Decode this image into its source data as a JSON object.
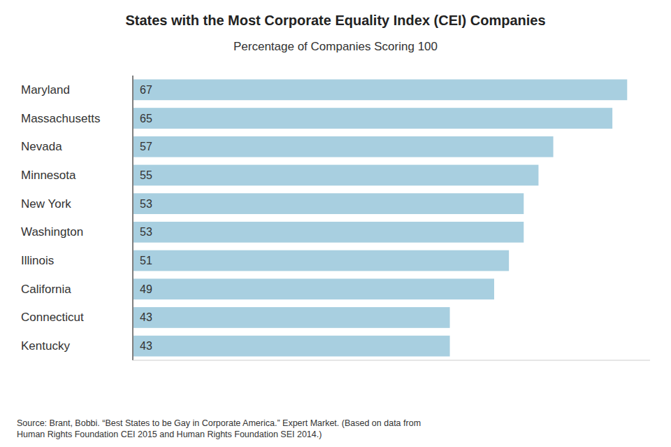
{
  "chart_data": {
    "type": "bar",
    "orientation": "horizontal",
    "title": "States with the Most Corporate Equality Index (CEI) Companies",
    "subtitle": "Percentage of Companies Scoring 100",
    "annotation": "Source: Brant, Bobbi. “Best States to be Gay in Corporate America.” Expert Market. (Based on data from\nHuman Rights Foundation CEI 2015 and Human Rights Foundation SEI 2014.)",
    "categories": [
      "Maryland",
      "Massachusetts",
      "Nevada",
      "Minnesota",
      "New York",
      "Washington",
      "Illinois",
      "California",
      "Connecticut",
      "Kentucky"
    ],
    "values": [
      67,
      65,
      57,
      55,
      53,
      53,
      51,
      49,
      43,
      43
    ],
    "color": "#a8cfe0",
    "xlim": [
      0,
      70
    ],
    "data_labels": true,
    "tick_labels": "y",
    "grid": false
  }
}
